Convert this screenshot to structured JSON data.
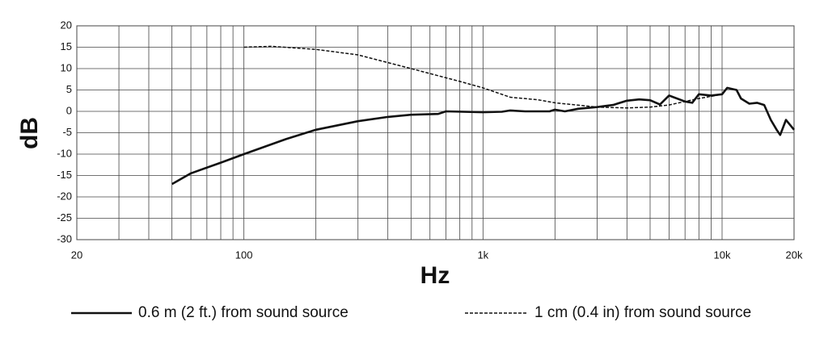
{
  "chart_data": {
    "type": "line",
    "x_label": "Hz",
    "y_label": "dB",
    "log_x": true,
    "xlim": [
      20,
      20000
    ],
    "ylim": [
      -30,
      20
    ],
    "xticks": [
      20,
      100,
      {
        "value": 1000,
        "label": "1k"
      },
      {
        "value": 10000,
        "label": "10k"
      },
      {
        "value": 20000,
        "label": "20k"
      }
    ],
    "x_minor_ticks": [
      30,
      40,
      50,
      60,
      70,
      80,
      90,
      200,
      300,
      400,
      500,
      600,
      700,
      800,
      900,
      2000,
      3000,
      4000,
      5000,
      6000,
      7000,
      8000,
      9000
    ],
    "yticks": [
      20,
      15,
      10,
      5,
      0,
      -5,
      -10,
      -15,
      -20,
      -25,
      -30
    ],
    "grid": true,
    "series": [
      {
        "name": "0.6 m (2 ft.) from sound source",
        "color": "#111111",
        "dash": false,
        "x": [
          50,
          60,
          80,
          100,
          150,
          200,
          300,
          400,
          500,
          650,
          700,
          1000,
          1200,
          1300,
          1500,
          1900,
          2000,
          2200,
          2500,
          3000,
          3500,
          4000,
          4500,
          5000,
          5500,
          6000,
          7000,
          7500,
          8000,
          9000,
          10000,
          10500,
          11500,
          12000,
          13000,
          14000,
          15000,
          16000,
          17000,
          17500,
          18500,
          20000
        ],
        "values": [
          -17,
          -14.5,
          -12,
          -10,
          -6.5,
          -4.3,
          -2.3,
          -1.3,
          -0.8,
          -0.6,
          0,
          -0.2,
          -0.1,
          0.2,
          0,
          0,
          0.4,
          0,
          0.6,
          1,
          1.5,
          2.5,
          2.8,
          2.6,
          1.6,
          3.7,
          2.3,
          2,
          4,
          3.7,
          4,
          5.5,
          5,
          3,
          1.8,
          2,
          1.5,
          -2,
          -4.5,
          -5.5,
          -2,
          -4.3
        ]
      },
      {
        "name": "1 cm (0.4 in) from sound source",
        "color": "#111111",
        "dash": true,
        "x": [
          100,
          130,
          200,
          300,
          500,
          800,
          1000,
          1300,
          1700,
          2000,
          3000,
          4000,
          5000,
          6000,
          7000,
          8000,
          9000,
          10000
        ],
        "values": [
          15,
          15.2,
          14.5,
          13.2,
          10,
          7,
          5.5,
          3.3,
          2.7,
          2,
          1,
          0.8,
          1,
          1.5,
          2.3,
          3,
          3.5,
          4
        ]
      }
    ]
  }
}
